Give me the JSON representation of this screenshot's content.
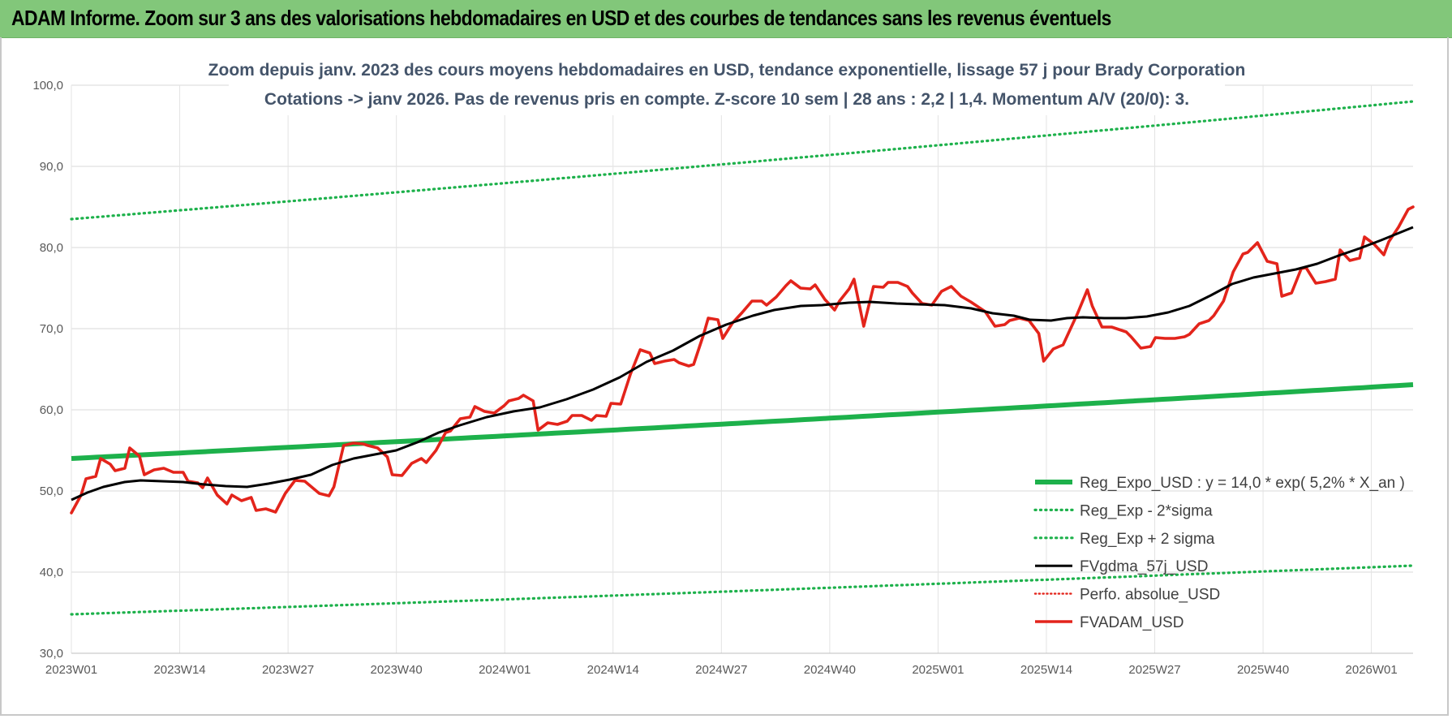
{
  "banner": {
    "title": "ADAM Informe. Zoom sur 3 ans des valorisations hebdomadaires en USD et des courbes de tendances sans les revenus éventuels"
  },
  "colors": {
    "banner_bg": "#82c77a",
    "reg_expo": "#1db14b",
    "sigma": "#1db14b",
    "fvgdma": "#000000",
    "perfo": "#e3241b",
    "fvadam": "#e3241b",
    "title_text": "#44546a"
  },
  "chart_data": {
    "type": "line",
    "title_lines": [
      "Zoom depuis janv. 2023 des cours moyens hebdomadaires en USD, tendance exponentielle, lissage 57 j pour Brady Corporation",
      "Cotations -> janv 2026. Pas de revenus pris en compte. Z-score 10 sem | 28 ans : 2,2 | 1,4. Momentum A/V (20/0): 3."
    ],
    "ylim": [
      30,
      100
    ],
    "y_ticks": [
      "30,0",
      "40,0",
      "50,0",
      "60,0",
      "70,0",
      "80,0",
      "90,0",
      "100,0"
    ],
    "x_tick_labels": [
      "2023W01",
      "2023W14",
      "2023W27",
      "2023W40",
      "2024W01",
      "2024W14",
      "2024W27",
      "2024W40",
      "2025W01",
      "2025W14",
      "2025W27",
      "2025W40",
      "2026W01"
    ],
    "x_count": 162,
    "x_label_every": 13,
    "legend": [
      {
        "key": "reg_expo",
        "label": "Reg_Expo_USD : y = 14,0 * exp( 5,2% *  X_an )",
        "style": "thick-solid"
      },
      {
        "key": "sigma_minus",
        "label": "Reg_Exp - 2*sigma",
        "style": "dotted"
      },
      {
        "key": "sigma_plus",
        "label": "Reg_Exp + 2 sigma",
        "style": "dotted"
      },
      {
        "key": "fvgdma",
        "label": "FVgdma_57j_USD",
        "style": "solid"
      },
      {
        "key": "perfo",
        "label": "Perfo. absolue_USD",
        "style": "dotted-red"
      },
      {
        "key": "fvadam",
        "label": "FVADAM_USD",
        "style": "thick-red"
      }
    ],
    "series": [
      {
        "key": "reg_expo",
        "name": "Reg_Expo_USD : y = 14,0 * exp( 5,2% *  X_an )",
        "start": 54.0,
        "end": 63.1
      },
      {
        "key": "sigma_plus",
        "name": "Reg_Exp + 2 sigma",
        "start": 83.5,
        "end": 98.0
      },
      {
        "key": "sigma_minus",
        "name": "Reg_Exp - 2*sigma",
        "start": 34.8,
        "end": 40.8
      },
      {
        "key": "fvgdma",
        "name": "FVgdma_57j_USD",
        "knots": [
          [
            0,
            48.9
          ],
          [
            3,
            49.8
          ],
          [
            6,
            50.5
          ],
          [
            10,
            51.1
          ],
          [
            13,
            51.3
          ],
          [
            17,
            51.2
          ],
          [
            21,
            51.1
          ],
          [
            25,
            50.8
          ],
          [
            29,
            50.6
          ],
          [
            33,
            50.5
          ],
          [
            37,
            50.9
          ],
          [
            41,
            51.4
          ],
          [
            45,
            52.0
          ],
          [
            49,
            53.2
          ],
          [
            53,
            54.0
          ],
          [
            57,
            54.5
          ],
          [
            61,
            55.0
          ],
          [
            65,
            56.0
          ],
          [
            69,
            57.2
          ],
          [
            73,
            58.1
          ],
          [
            78,
            59.1
          ],
          [
            83,
            59.8
          ],
          [
            88,
            60.3
          ],
          [
            93,
            61.3
          ],
          [
            98,
            62.5
          ],
          [
            103,
            64.0
          ],
          [
            108,
            65.9
          ],
          [
            113,
            67.3
          ],
          [
            118,
            69.1
          ],
          [
            123,
            70.5
          ],
          [
            128,
            71.6
          ],
          [
            132,
            72.3
          ],
          [
            137,
            72.8
          ],
          [
            141,
            72.9
          ],
          [
            146,
            73.2
          ],
          [
            150,
            73.3
          ],
          [
            155,
            73.1
          ],
          [
            159,
            73.0
          ],
          [
            164,
            72.9
          ],
          [
            169,
            72.5
          ],
          [
            173,
            71.9
          ],
          [
            177,
            71.6
          ],
          [
            180,
            71.1
          ],
          [
            184,
            71.0
          ],
          [
            187,
            71.3
          ],
          [
            190,
            71.4
          ],
          [
            194,
            71.3
          ],
          [
            198,
            71.3
          ],
          [
            202,
            71.5
          ],
          [
            206,
            72.0
          ],
          [
            210,
            72.8
          ],
          [
            214,
            74.1
          ],
          [
            218,
            75.5
          ],
          [
            222,
            76.3
          ],
          [
            226,
            76.8
          ],
          [
            230,
            77.3
          ],
          [
            234,
            78.0
          ],
          [
            238,
            79.0
          ],
          [
            242,
            79.9
          ],
          [
            246,
            80.9
          ],
          [
            249,
            81.7
          ],
          [
            252,
            82.5
          ]
        ]
      },
      {
        "key": "fvadam",
        "name": "FVADAM_USD",
        "knots": [
          [
            0,
            47.3
          ],
          [
            2,
            49.5
          ],
          [
            3,
            51.5
          ],
          [
            5,
            51.8
          ],
          [
            6,
            54.0
          ],
          [
            8,
            53.3
          ],
          [
            9,
            52.5
          ],
          [
            11,
            52.8
          ],
          [
            12,
            55.3
          ],
          [
            14,
            54.3
          ],
          [
            15,
            52.0
          ],
          [
            17,
            52.6
          ],
          [
            19,
            52.8
          ],
          [
            21,
            52.3
          ],
          [
            23,
            52.3
          ],
          [
            24,
            51.2
          ],
          [
            26,
            51.0
          ],
          [
            27,
            50.4
          ],
          [
            28,
            51.6
          ],
          [
            30,
            49.5
          ],
          [
            32,
            48.4
          ],
          [
            33,
            49.5
          ],
          [
            35,
            48.8
          ],
          [
            37,
            49.2
          ],
          [
            38,
            47.6
          ],
          [
            40,
            47.8
          ],
          [
            42,
            47.4
          ],
          [
            44,
            49.7
          ],
          [
            46,
            51.3
          ],
          [
            48,
            51.2
          ],
          [
            50,
            50.2
          ],
          [
            51,
            49.7
          ],
          [
            53,
            49.4
          ],
          [
            54,
            50.5
          ],
          [
            56,
            55.6
          ],
          [
            58,
            55.9
          ],
          [
            60,
            55.8
          ],
          [
            61,
            55.6
          ],
          [
            63,
            55.3
          ],
          [
            65,
            54.2
          ],
          [
            66,
            52.0
          ],
          [
            68,
            51.9
          ],
          [
            70,
            53.4
          ],
          [
            72,
            54.0
          ],
          [
            73,
            53.5
          ],
          [
            75,
            55.0
          ],
          [
            77,
            57.2
          ],
          [
            78,
            57.4
          ],
          [
            80,
            58.9
          ],
          [
            82,
            59.1
          ],
          [
            83,
            60.4
          ],
          [
            85,
            59.8
          ],
          [
            87,
            59.6
          ],
          [
            89,
            60.5
          ],
          [
            90,
            61.1
          ],
          [
            92,
            61.4
          ],
          [
            93,
            61.8
          ],
          [
            95,
            61.1
          ],
          [
            96,
            57.5
          ],
          [
            98,
            58.4
          ],
          [
            100,
            58.2
          ],
          [
            102,
            58.6
          ],
          [
            103,
            59.3
          ],
          [
            105,
            59.3
          ],
          [
            107,
            58.7
          ],
          [
            108,
            59.3
          ],
          [
            110,
            59.2
          ],
          [
            111,
            60.8
          ],
          [
            113,
            60.7
          ],
          [
            115,
            64.4
          ],
          [
            117,
            67.4
          ],
          [
            119,
            67.0
          ],
          [
            120,
            65.7
          ],
          [
            122,
            66.0
          ],
          [
            124,
            66.2
          ],
          [
            125,
            65.8
          ],
          [
            127,
            65.4
          ],
          [
            128,
            65.6
          ],
          [
            130,
            69.2
          ],
          [
            131,
            71.3
          ],
          [
            133,
            71.1
          ],
          [
            134,
            68.8
          ],
          [
            136,
            70.7
          ],
          [
            138,
            72.0
          ],
          [
            140,
            73.4
          ],
          [
            142,
            73.4
          ],
          [
            143,
            72.9
          ],
          [
            145,
            73.9
          ],
          [
            147,
            75.3
          ],
          [
            148,
            75.9
          ],
          [
            150,
            75.0
          ],
          [
            152,
            74.9
          ],
          [
            153,
            75.4
          ],
          [
            155,
            73.6
          ],
          [
            157,
            72.3
          ],
          [
            158,
            73.4
          ],
          [
            160,
            74.9
          ],
          [
            161,
            76.1
          ],
          [
            163,
            70.3
          ],
          [
            165,
            75.2
          ],
          [
            167,
            75.1
          ],
          [
            168,
            75.7
          ],
          [
            170,
            75.7
          ],
          [
            172,
            75.2
          ],
          [
            173,
            74.4
          ],
          [
            175,
            73.1
          ],
          [
            177,
            72.9
          ],
          [
            179,
            74.6
          ],
          [
            181,
            75.2
          ],
          [
            183,
            74.0
          ],
          [
            185,
            73.3
          ],
          [
            187,
            72.5
          ],
          [
            188,
            72.1
          ],
          [
            190,
            70.3
          ],
          [
            192,
            70.5
          ],
          [
            193,
            71.0
          ],
          [
            195,
            71.3
          ],
          [
            197,
            71.0
          ],
          [
            199,
            69.4
          ],
          [
            200,
            66.0
          ],
          [
            202,
            67.5
          ],
          [
            204,
            68.0
          ],
          [
            205,
            69.3
          ],
          [
            207,
            71.9
          ],
          [
            209,
            74.8
          ],
          [
            210,
            72.8
          ],
          [
            212,
            70.2
          ],
          [
            214,
            70.2
          ],
          [
            215,
            70.0
          ],
          [
            217,
            69.6
          ],
          [
            218,
            69.0
          ],
          [
            220,
            67.6
          ],
          [
            222,
            67.8
          ],
          [
            223,
            68.9
          ],
          [
            225,
            68.8
          ],
          [
            227,
            68.8
          ],
          [
            229,
            69.0
          ],
          [
            230,
            69.3
          ],
          [
            232,
            70.6
          ],
          [
            234,
            71.0
          ],
          [
            235,
            71.6
          ],
          [
            237,
            73.4
          ],
          [
            239,
            77.0
          ],
          [
            241,
            79.2
          ],
          [
            242,
            79.4
          ],
          [
            244,
            80.6
          ],
          [
            246,
            78.3
          ],
          [
            248,
            78.0
          ],
          [
            249,
            74.0
          ],
          [
            251,
            74.4
          ],
          [
            253,
            77.4
          ],
          [
            254,
            77.5
          ],
          [
            256,
            75.6
          ],
          [
            258,
            75.8
          ],
          [
            260,
            76.1
          ],
          [
            261,
            79.7
          ],
          [
            263,
            78.4
          ],
          [
            265,
            78.7
          ],
          [
            266,
            81.3
          ],
          [
            268,
            80.4
          ],
          [
            270,
            79.1
          ],
          [
            271,
            80.7
          ],
          [
            273,
            82.5
          ],
          [
            275,
            84.7
          ],
          [
            276,
            85.0
          ]
        ]
      }
    ]
  }
}
